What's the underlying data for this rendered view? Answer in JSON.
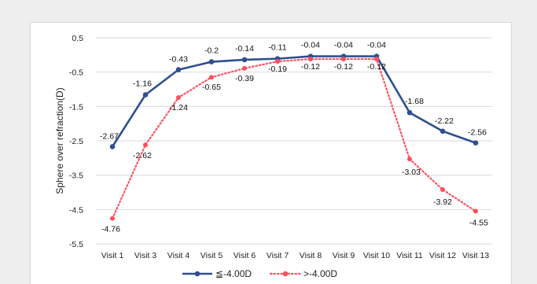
{
  "chart_data": {
    "type": "line",
    "title": "",
    "xlabel": "",
    "ylabel": "Sphere over refraction(D)",
    "categories": [
      "Visit 1",
      "Visit 3",
      "Visit 4",
      "Visit 5",
      "Visit 6",
      "Visit 7",
      "Visit 8",
      "Visit 9",
      "Visit 10",
      "Visit 11",
      "Visit 12",
      "Visit 13"
    ],
    "yticks": [
      "0.5",
      "-0.5",
      "-1.5",
      "-2.5",
      "-3.5",
      "-4.5",
      "-5.5"
    ],
    "ylim": [
      -5.5,
      0.5
    ],
    "grid": true,
    "legend_position": "bottom",
    "series": [
      {
        "name": "≦-4.00D",
        "color": "#2f4f8f",
        "style": "solid",
        "marker": "circle",
        "values": [
          -2.67,
          -1.16,
          -0.43,
          -0.2,
          -0.14,
          -0.11,
          -0.04,
          -0.04,
          -0.04,
          -1.68,
          -2.22,
          -2.56
        ],
        "labels": [
          "-2.67",
          "-1.16",
          "-0.43",
          "-0.2",
          "-0.14",
          "-0.11",
          "-0.04",
          "-0.04",
          "-0.04",
          "-1.68",
          "-2.22",
          "-2.56"
        ]
      },
      {
        "name": ">-4.00D",
        "color": "#ff4f5e",
        "style": "dotted",
        "marker": "circle",
        "values": [
          -4.76,
          -2.62,
          -1.24,
          -0.65,
          -0.39,
          -0.19,
          -0.12,
          -0.12,
          -0.12,
          -3.03,
          -3.92,
          -4.55
        ],
        "labels": [
          "-4.76",
          "-2.62",
          "-1.24",
          "-0.65",
          "-0.39",
          "-0.19",
          "-0.12",
          "-0.12",
          "-0.12",
          "-3.03",
          "-3.92",
          "-4.55"
        ]
      }
    ]
  }
}
